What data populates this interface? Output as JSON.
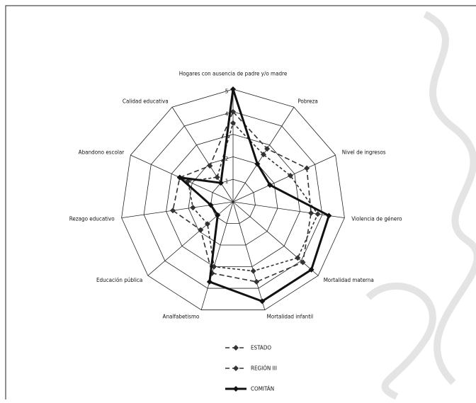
{
  "chart_data": {
    "type": "radar",
    "categories": [
      "Hogares con ausencia de padre y/o madre",
      "Pobreza",
      "Nivel de ingresos",
      "Violencia de género",
      "Mortalidad materna",
      "Mortalidad infantil",
      "Analfabetismo",
      "Educación pública",
      "Rezago educativo",
      "Abandono escolar",
      "Calidad educativa"
    ],
    "ylim": [
      0,
      5
    ],
    "yticks": [
      1,
      2,
      3,
      4,
      5
    ],
    "grid": true,
    "legend": "bottom",
    "series": [
      {
        "name": "ESTADO",
        "color": "#333333",
        "line_style": "dashed",
        "values": [
          4,
          2.8,
          3.6,
          3.5,
          4.1,
          3.7,
          3.3,
          1.9,
          2.7,
          2.6,
          1.9
        ]
      },
      {
        "name": "REGIÓN III",
        "color": "#333333",
        "line_style": "dashed",
        "values": [
          3.5,
          2.5,
          2.8,
          3.8,
          3.8,
          3.2,
          3.0,
          1.5,
          1.8,
          2.2,
          1.3
        ]
      },
      {
        "name": "COMITÁN",
        "color": "#111111",
        "line_style": "solid",
        "values": [
          5,
          2,
          1.8,
          4.3,
          4.6,
          4.6,
          3.7,
          0.9,
          1,
          2.6,
          1
        ]
      }
    ]
  }
}
